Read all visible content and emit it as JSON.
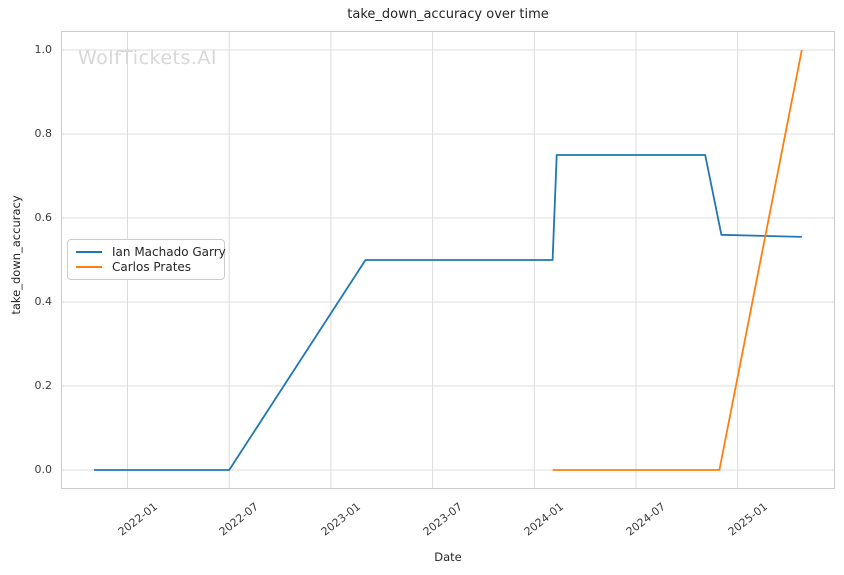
{
  "chart": {
    "title": "take_down_accuracy over time",
    "xlabel": "Date",
    "ylabel": "take_down_accuracy",
    "watermark": "WolfTickets.AI"
  },
  "chart_data": {
    "type": "line",
    "title": "take_down_accuracy over time",
    "xlabel": "Date",
    "ylabel": "take_down_accuracy",
    "watermark": "WolfTickets.AI",
    "grid": true,
    "legend_position": "center-left",
    "ylim": [
      -0.05,
      1.05
    ],
    "colors": {
      "grid": "#dcdcdc",
      "spine": "#cccccc",
      "text": "#262626",
      "tick_text": "#3b3b3b",
      "watermark": "#d7d7d7"
    },
    "x_axis": {
      "ticks": [
        {
          "label": "2022-01",
          "x": 2022.0
        },
        {
          "label": "2022-07",
          "x": 2022.5
        },
        {
          "label": "2023-01",
          "x": 2023.0
        },
        {
          "label": "2023-07",
          "x": 2023.5
        },
        {
          "label": "2024-01",
          "x": 2024.0
        },
        {
          "label": "2024-07",
          "x": 2024.5
        },
        {
          "label": "2025-01",
          "x": 2025.0
        }
      ]
    },
    "y_axis": {
      "ticks": [
        {
          "label": "0.0",
          "v": 0.0
        },
        {
          "label": "0.2",
          "v": 0.2
        },
        {
          "label": "0.4",
          "v": 0.4
        },
        {
          "label": "0.6",
          "v": 0.6
        },
        {
          "label": "0.8",
          "v": 0.8
        },
        {
          "label": "1.0",
          "v": 1.0
        }
      ]
    },
    "series": [
      {
        "name": "Ian Machado Garry",
        "color": "#1f77b4",
        "points": [
          {
            "date": "2021-11",
            "x": 2021.835,
            "y": 0.0
          },
          {
            "date": "2022-07",
            "x": 2022.5,
            "y": 0.0
          },
          {
            "date": "2023-03",
            "x": 2023.17,
            "y": 0.5
          },
          {
            "date": "2024-01",
            "x": 2024.09,
            "y": 0.5
          },
          {
            "date": "2024-02",
            "x": 2024.11,
            "y": 0.75
          },
          {
            "date": "2024-11",
            "x": 2024.84,
            "y": 0.75
          },
          {
            "date": "2024-12",
            "x": 2024.92,
            "y": 0.56
          },
          {
            "date": "2025-04",
            "x": 2025.315,
            "y": 0.555
          }
        ]
      },
      {
        "name": "Carlos Prates",
        "color": "#ff7f0e",
        "points": [
          {
            "date": "2024-01",
            "x": 2024.09,
            "y": 0.0
          },
          {
            "date": "2024-12",
            "x": 2024.91,
            "y": 0.0
          },
          {
            "date": "2025-04",
            "x": 2025.315,
            "y": 1.0
          }
        ]
      }
    ]
  }
}
